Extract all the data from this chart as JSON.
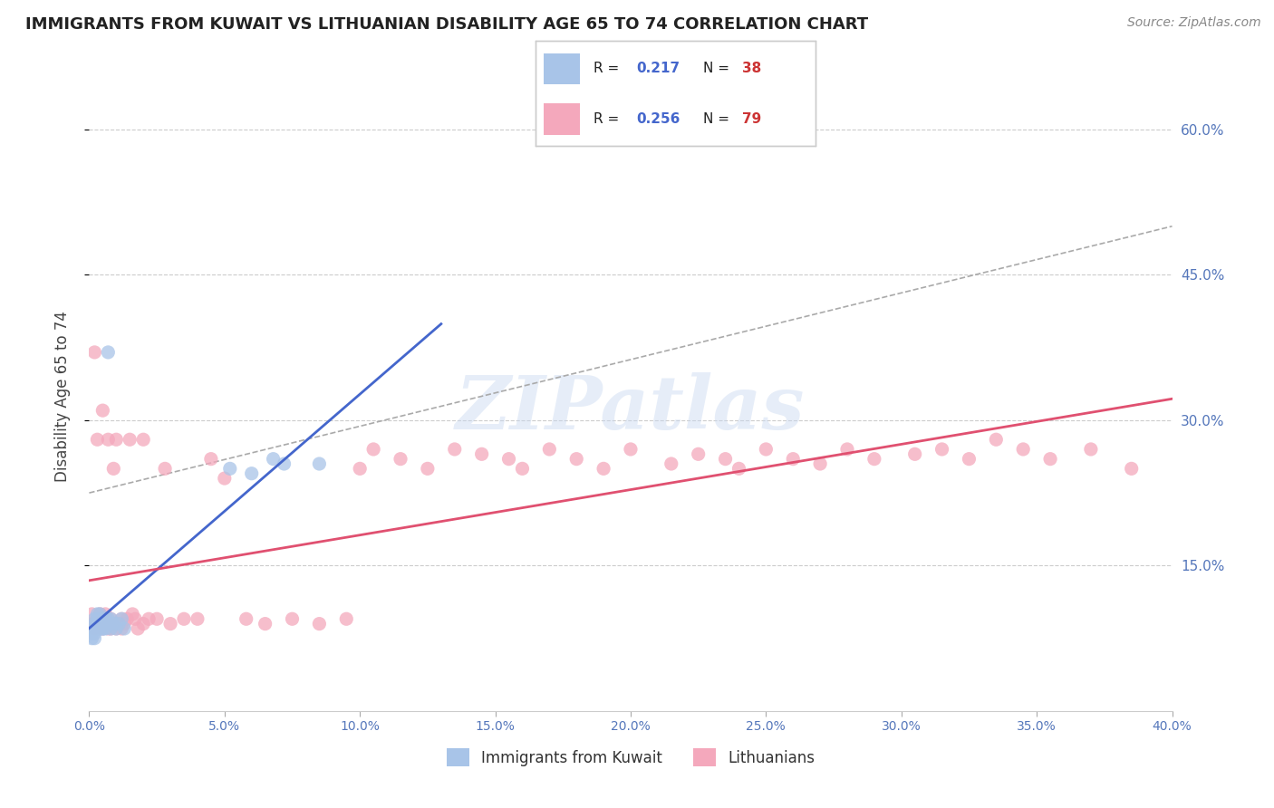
{
  "title": "IMMIGRANTS FROM KUWAIT VS LITHUANIAN DISABILITY AGE 65 TO 74 CORRELATION CHART",
  "source": "Source: ZipAtlas.com",
  "R_blue": 0.217,
  "N_blue": 38,
  "R_pink": 0.256,
  "N_pink": 79,
  "blue_color": "#a8c4e8",
  "pink_color": "#f4a8bc",
  "blue_line_color": "#4466cc",
  "pink_line_color": "#e05070",
  "grey_line_color": "#aaaaaa",
  "watermark": "ZIPatlas",
  "legend_blue_label": "Immigrants from Kuwait",
  "legend_pink_label": "Lithuanians",
  "blue_x": [
    0.001,
    0.001,
    0.001,
    0.002,
    0.002,
    0.002,
    0.002,
    0.003,
    0.003,
    0.003,
    0.003,
    0.004,
    0.004,
    0.004,
    0.004,
    0.005,
    0.005,
    0.005,
    0.005,
    0.006,
    0.006,
    0.006,
    0.006,
    0.007,
    0.007,
    0.007,
    0.008,
    0.008,
    0.009,
    0.01,
    0.011,
    0.012,
    0.013,
    0.052,
    0.06,
    0.068,
    0.072,
    0.085
  ],
  "blue_y": [
    0.08,
    0.085,
    0.075,
    0.095,
    0.09,
    0.08,
    0.075,
    0.09,
    0.085,
    0.095,
    0.1,
    0.085,
    0.09,
    0.095,
    0.1,
    0.085,
    0.09,
    0.095,
    0.085,
    0.09,
    0.095,
    0.09,
    0.085,
    0.37,
    0.095,
    0.09,
    0.085,
    0.095,
    0.09,
    0.085,
    0.09,
    0.095,
    0.085,
    0.25,
    0.245,
    0.26,
    0.255,
    0.255
  ],
  "pink_x": [
    0.001,
    0.001,
    0.002,
    0.002,
    0.002,
    0.003,
    0.003,
    0.004,
    0.004,
    0.004,
    0.005,
    0.005,
    0.005,
    0.006,
    0.006,
    0.006,
    0.007,
    0.007,
    0.007,
    0.008,
    0.008,
    0.008,
    0.009,
    0.009,
    0.01,
    0.01,
    0.011,
    0.012,
    0.012,
    0.013,
    0.014,
    0.015,
    0.016,
    0.017,
    0.018,
    0.02,
    0.02,
    0.022,
    0.025,
    0.028,
    0.03,
    0.035,
    0.04,
    0.045,
    0.05,
    0.058,
    0.065,
    0.075,
    0.085,
    0.095,
    0.1,
    0.105,
    0.115,
    0.125,
    0.135,
    0.145,
    0.155,
    0.16,
    0.17,
    0.18,
    0.19,
    0.2,
    0.215,
    0.225,
    0.235,
    0.24,
    0.25,
    0.26,
    0.27,
    0.28,
    0.29,
    0.305,
    0.315,
    0.325,
    0.335,
    0.345,
    0.355,
    0.37,
    0.385
  ],
  "pink_y": [
    0.09,
    0.1,
    0.085,
    0.37,
    0.09,
    0.095,
    0.28,
    0.09,
    0.1,
    0.095,
    0.085,
    0.31,
    0.095,
    0.09,
    0.1,
    0.095,
    0.085,
    0.28,
    0.09,
    0.09,
    0.095,
    0.085,
    0.09,
    0.25,
    0.085,
    0.28,
    0.09,
    0.095,
    0.085,
    0.09,
    0.095,
    0.28,
    0.1,
    0.095,
    0.085,
    0.09,
    0.28,
    0.095,
    0.095,
    0.25,
    0.09,
    0.095,
    0.095,
    0.26,
    0.24,
    0.095,
    0.09,
    0.095,
    0.09,
    0.095,
    0.25,
    0.27,
    0.26,
    0.25,
    0.27,
    0.265,
    0.26,
    0.25,
    0.27,
    0.26,
    0.25,
    0.27,
    0.255,
    0.265,
    0.26,
    0.25,
    0.27,
    0.26,
    0.255,
    0.27,
    0.26,
    0.265,
    0.27,
    0.26,
    0.28,
    0.27,
    0.26,
    0.27,
    0.25
  ]
}
